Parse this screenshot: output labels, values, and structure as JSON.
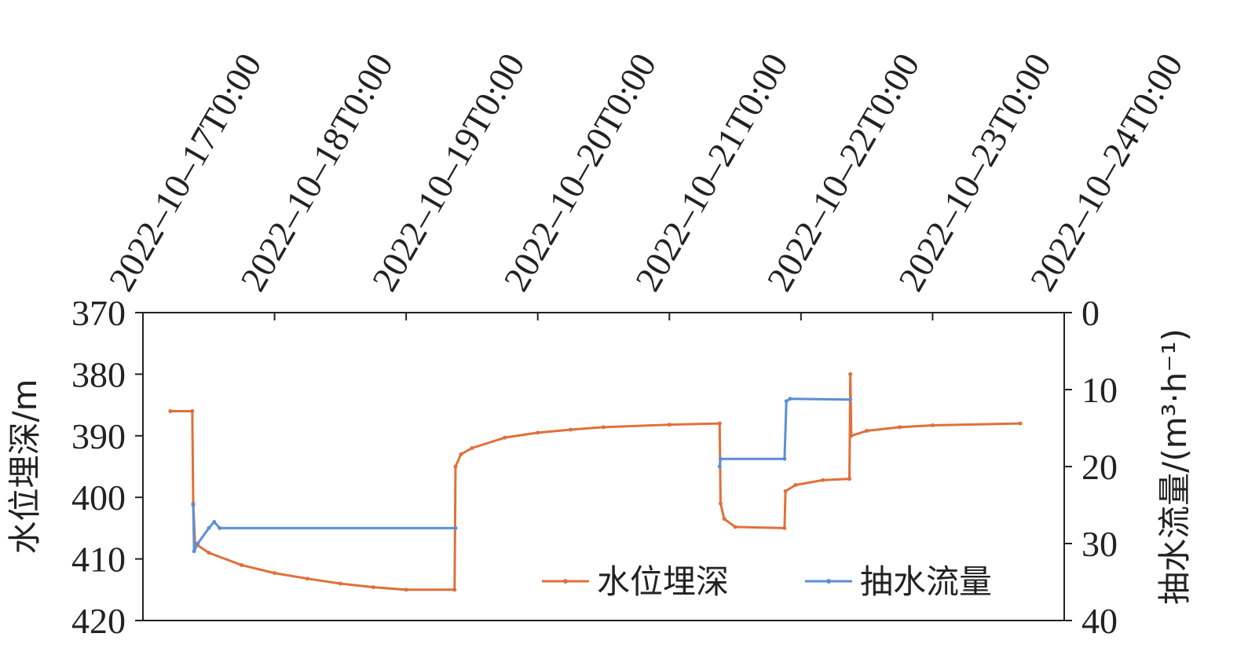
{
  "chart_data": {
    "type": "line",
    "x_axis_type": "datetime",
    "xlim": [
      "2022-10-17T00:00",
      "2022-10-24T00:00"
    ],
    "xticks": [
      {
        "value": "2022-10-17T00:00",
        "label": "2022–10–17T0:00"
      },
      {
        "value": "2022-10-18T00:00",
        "label": "2022–10–18T0:00"
      },
      {
        "value": "2022-10-19T00:00",
        "label": "2022–10–19T0:00"
      },
      {
        "value": "2022-10-20T00:00",
        "label": "2022–10–20T0:00"
      },
      {
        "value": "2022-10-21T00:00",
        "label": "2022–10–21T0:00"
      },
      {
        "value": "2022-10-22T00:00",
        "label": "2022–10–22T0:00"
      },
      {
        "value": "2022-10-23T00:00",
        "label": "2022–10–23T0:00"
      },
      {
        "value": "2022-10-24T00:00",
        "label": "2022–10–24T0:00"
      }
    ],
    "y_label": "水位埋深/m",
    "y2_label": "抽水流量/(m³·h⁻¹)",
    "ylim": [
      420,
      370
    ],
    "yticks": [
      370,
      380,
      390,
      400,
      410,
      420
    ],
    "y2lim": [
      40,
      0
    ],
    "y2ticks": [
      0,
      10,
      20,
      30,
      40
    ],
    "legend": "lower right",
    "series": [
      {
        "name": "水位埋深",
        "color": "#e0703a",
        "axis": "y",
        "x": [
          "2022-10-17T05:00",
          "2022-10-17T09:00",
          "2022-10-17T09:10",
          "2022-10-17T09:30",
          "2022-10-17T12:00",
          "2022-10-17T18:00",
          "2022-10-18T00:00",
          "2022-10-18T06:00",
          "2022-10-18T12:00",
          "2022-10-18T18:00",
          "2022-10-19T00:00",
          "2022-10-19T08:50",
          "2022-10-19T09:00",
          "2022-10-19T10:00",
          "2022-10-19T12:00",
          "2022-10-19T18:00",
          "2022-10-20T00:00",
          "2022-10-20T06:00",
          "2022-10-20T12:00",
          "2022-10-21T00:00",
          "2022-10-21T09:10",
          "2022-10-21T09:20",
          "2022-10-21T10:00",
          "2022-10-21T12:00",
          "2022-10-21T21:00",
          "2022-10-21T21:10",
          "2022-10-21T23:00",
          "2022-10-22T04:00",
          "2022-10-22T08:50",
          "2022-10-22T09:00",
          "2022-10-22T09:10",
          "2022-10-22T12:00",
          "2022-10-22T18:00",
          "2022-10-23T00:00",
          "2022-10-23T16:00"
        ],
        "values": [
          386,
          386,
          401,
          407.5,
          409,
          411,
          412.3,
          413.2,
          414,
          414.6,
          415,
          415,
          395,
          393,
          392,
          390.3,
          389.5,
          389,
          388.6,
          388.2,
          388,
          401,
          403.5,
          404.8,
          405,
          399,
          398,
          397.2,
          397,
          380,
          390,
          389.2,
          388.6,
          388.3,
          388
        ]
      },
      {
        "name": "抽水流量",
        "color": "#5b8fd6",
        "axis": "y2",
        "x": [
          "2022-10-17T09:10",
          "2022-10-17T09:20",
          "2022-10-17T10:00",
          "2022-10-17T12:00",
          "2022-10-17T13:00",
          "2022-10-17T14:00",
          "2022-10-19T09:00",
          "2022-10-20T00:00",
          "2022-10-21T09:10",
          "2022-10-21T09:20",
          "2022-10-21T21:00",
          "2022-10-21T21:20",
          "2022-10-21T22:00",
          "2022-10-22T09:00"
        ],
        "values": [
          25,
          31,
          30,
          28,
          27.2,
          28,
          28,
          null,
          20,
          19,
          19,
          11.5,
          11.2,
          11.3
        ]
      }
    ]
  }
}
